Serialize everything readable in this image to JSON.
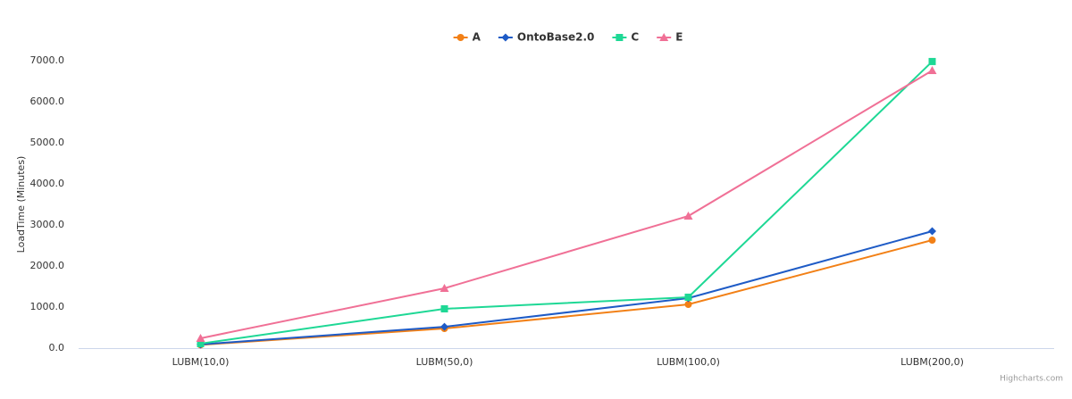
{
  "chart_data": {
    "type": "line",
    "categories": [
      "LUBM(10,0)",
      "LUBM(50,0)",
      "LUBM(100,0)",
      "LUBM(200,0)"
    ],
    "series": [
      {
        "name": "A",
        "color": "#f28016",
        "marker": "circle",
        "values": [
          80,
          478,
          1065,
          2630
        ]
      },
      {
        "name": "OntoBase2.0",
        "color": "#1e5bc6",
        "marker": "diamond",
        "values": [
          90,
          520,
          1217,
          2848
        ]
      },
      {
        "name": "C",
        "color": "#1ed895",
        "marker": "square",
        "values": [
          110,
          957,
          1240,
          6980
        ]
      },
      {
        "name": "E",
        "color": "#f07096",
        "marker": "triangle",
        "values": [
          240,
          1457,
          3217,
          6761
        ]
      }
    ],
    "y_axis_label": "LoadTime (Minutes)",
    "ylim": [
      0,
      7000
    ],
    "yticks": [
      {
        "value": 0,
        "label": "0.0"
      },
      {
        "value": 1000,
        "label": "1000.0"
      },
      {
        "value": 2000,
        "label": "2000.0"
      },
      {
        "value": 3000,
        "label": "3000.0"
      },
      {
        "value": 4000,
        "label": "4000.0"
      },
      {
        "value": 5000,
        "label": "5000.0"
      },
      {
        "value": 6000,
        "label": "6000.0"
      },
      {
        "value": 7000,
        "label": "7000.0"
      }
    ],
    "grid": false,
    "legend": "top",
    "credits": "Highcharts.com"
  }
}
